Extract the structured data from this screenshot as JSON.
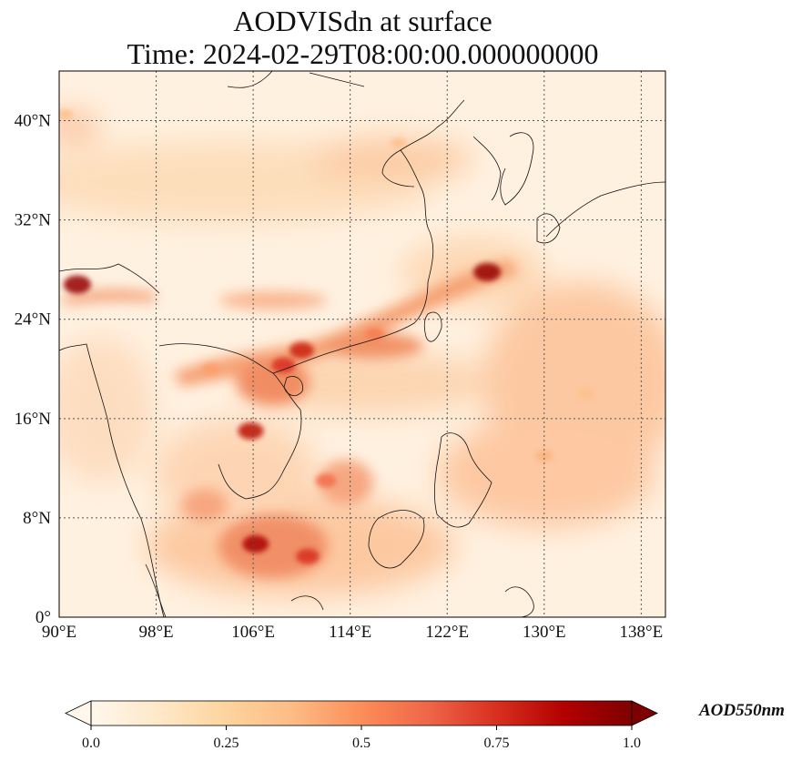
{
  "title": {
    "line1": "AODVISdn at surface",
    "line2": "Time: 2024-02-29T08:00:00.000000000"
  },
  "map": {
    "lon_range": [
      90,
      140
    ],
    "lat_range": [
      0,
      44
    ],
    "x_ticks": [
      "90°E",
      "98°E",
      "106°E",
      "114°E",
      "122°E",
      "130°E",
      "138°E"
    ],
    "x_tick_values": [
      90,
      98,
      106,
      114,
      122,
      130,
      138
    ],
    "y_ticks": [
      "0°",
      "8°N",
      "16°N",
      "24°N",
      "32°N",
      "40°N"
    ],
    "y_tick_values": [
      0,
      8,
      16,
      24,
      32,
      40
    ],
    "gridlines": true,
    "colormap": "OrRd"
  },
  "colorbar": {
    "label": "AOD550nm",
    "ticks": [
      "0.0",
      "0.25",
      "0.5",
      "0.75",
      "1.0"
    ],
    "tick_values": [
      0,
      0.25,
      0.5,
      0.75,
      1.0
    ],
    "range": [
      0,
      1
    ],
    "extend": "both",
    "colors": [
      "#fff7ec",
      "#fee8c8",
      "#fdd49e",
      "#fdbb84",
      "#fc8d59",
      "#ef6548",
      "#d7301f",
      "#b30000",
      "#7f0000"
    ]
  },
  "features": {
    "plumes": [
      {
        "lon": 91.5,
        "lat": 26.8,
        "value": 0.95
      },
      {
        "lon": 125.3,
        "lat": 27.8,
        "value": 0.95
      },
      {
        "lon": 106.2,
        "lat": 5.9,
        "value": 0.9
      },
      {
        "lon": 105.8,
        "lat": 15.0,
        "value": 0.85
      },
      {
        "lon": 110.0,
        "lat": 21.5,
        "value": 0.8
      },
      {
        "lon": 108.5,
        "lat": 20.3,
        "value": 0.75
      },
      {
        "lon": 110.5,
        "lat": 4.9,
        "value": 0.75
      },
      {
        "lon": 112.0,
        "lat": 11.0,
        "value": 0.6
      },
      {
        "lon": 116.0,
        "lat": 22.8,
        "value": 0.55
      },
      {
        "lon": 102.5,
        "lat": 20.0,
        "value": 0.45
      },
      {
        "lon": 130.0,
        "lat": 13.0,
        "value": 0.4
      },
      {
        "lon": 133.5,
        "lat": 18.0,
        "value": 0.35
      },
      {
        "lon": 118.0,
        "lat": 38.2,
        "value": 0.35
      },
      {
        "lon": 90.5,
        "lat": 40.5,
        "value": 0.35
      }
    ]
  }
}
